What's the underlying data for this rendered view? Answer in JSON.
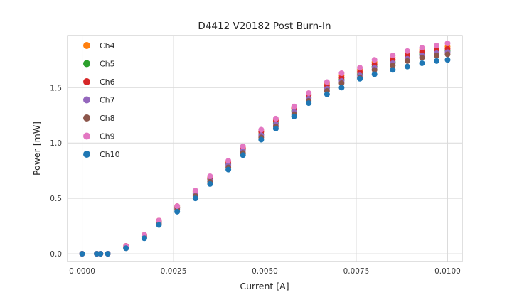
{
  "chart_data": {
    "type": "scatter",
    "title": "D4412 V20182 Post Burn-In",
    "xlabel": "Current [A]",
    "ylabel": "Power [mW]",
    "xlim": [
      -0.0004,
      0.0104
    ],
    "ylim": [
      -0.07,
      1.97
    ],
    "xticks": [
      0.0,
      0.0025,
      0.005,
      0.0075,
      0.01
    ],
    "xtick_labels": [
      "0.0000",
      "0.0025",
      "0.0050",
      "0.0075",
      "0.0100"
    ],
    "yticks": [
      0.0,
      0.5,
      1.0,
      1.5
    ],
    "ytick_labels": [
      "0.0",
      "0.5",
      "1.0",
      "1.5"
    ],
    "grid": true,
    "legend_position": "upper-left",
    "grid_color": "#d9d9d9",
    "spine_color": "#cccccc",
    "marker_radius": 4,
    "x": [
      0.0,
      0.0004,
      0.0005,
      0.0007,
      0.0012,
      0.0017,
      0.0021,
      0.0026,
      0.0031,
      0.0035,
      0.004,
      0.0044,
      0.0049,
      0.0053,
      0.0058,
      0.0062,
      0.0067,
      0.0071,
      0.0076,
      0.008,
      0.0085,
      0.0089,
      0.0093,
      0.0097,
      0.01
    ],
    "series": [
      {
        "name": "Ch4",
        "color": "#ff7f0e",
        "values": [
          0.0,
          0.0,
          0.0,
          0.0,
          0.07,
          0.17,
          0.3,
          0.43,
          0.56,
          0.69,
          0.83,
          0.96,
          1.11,
          1.21,
          1.32,
          1.44,
          1.54,
          1.61,
          1.66,
          1.73,
          1.77,
          1.81,
          1.84,
          1.86,
          1.87
        ]
      },
      {
        "name": "Ch5",
        "color": "#2ca02c",
        "values": [
          0.0,
          0.0,
          0.0,
          0.0,
          0.06,
          0.16,
          0.29,
          0.42,
          0.54,
          0.67,
          0.81,
          0.94,
          1.08,
          1.18,
          1.29,
          1.41,
          1.5,
          1.57,
          1.62,
          1.69,
          1.73,
          1.77,
          1.8,
          1.82,
          1.83
        ]
      },
      {
        "name": "Ch6",
        "color": "#d62728",
        "values": [
          0.0,
          0.0,
          0.0,
          0.0,
          0.07,
          0.17,
          0.3,
          0.42,
          0.55,
          0.68,
          0.82,
          0.95,
          1.1,
          1.2,
          1.31,
          1.43,
          1.52,
          1.59,
          1.64,
          1.71,
          1.75,
          1.79,
          1.82,
          1.84,
          1.85
        ]
      },
      {
        "name": "Ch7",
        "color": "#9467bd",
        "values": [
          0.0,
          0.0,
          0.0,
          0.0,
          0.06,
          0.15,
          0.28,
          0.41,
          0.53,
          0.66,
          0.8,
          0.93,
          1.07,
          1.17,
          1.28,
          1.4,
          1.49,
          1.56,
          1.61,
          1.68,
          1.72,
          1.76,
          1.79,
          1.81,
          1.82
        ]
      },
      {
        "name": "Ch8",
        "color": "#8c564b",
        "values": [
          0.0,
          0.0,
          0.0,
          0.0,
          0.05,
          0.15,
          0.27,
          0.4,
          0.52,
          0.65,
          0.78,
          0.91,
          1.05,
          1.15,
          1.26,
          1.38,
          1.47,
          1.54,
          1.59,
          1.66,
          1.7,
          1.74,
          1.77,
          1.79,
          1.8
        ]
      },
      {
        "name": "Ch9",
        "color": "#e377c2",
        "values": [
          0.0,
          0.0,
          0.0,
          0.0,
          0.07,
          0.17,
          0.3,
          0.43,
          0.57,
          0.7,
          0.84,
          0.97,
          1.12,
          1.22,
          1.33,
          1.45,
          1.55,
          1.63,
          1.68,
          1.75,
          1.79,
          1.83,
          1.86,
          1.88,
          1.9
        ]
      },
      {
        "name": "Ch10",
        "color": "#1f77b4",
        "values": [
          0.0,
          0.0,
          0.0,
          0.0,
          0.05,
          0.14,
          0.26,
          0.38,
          0.5,
          0.63,
          0.76,
          0.89,
          1.03,
          1.13,
          1.24,
          1.36,
          1.44,
          1.5,
          1.58,
          1.62,
          1.66,
          1.69,
          1.72,
          1.74,
          1.75
        ]
      }
    ]
  }
}
